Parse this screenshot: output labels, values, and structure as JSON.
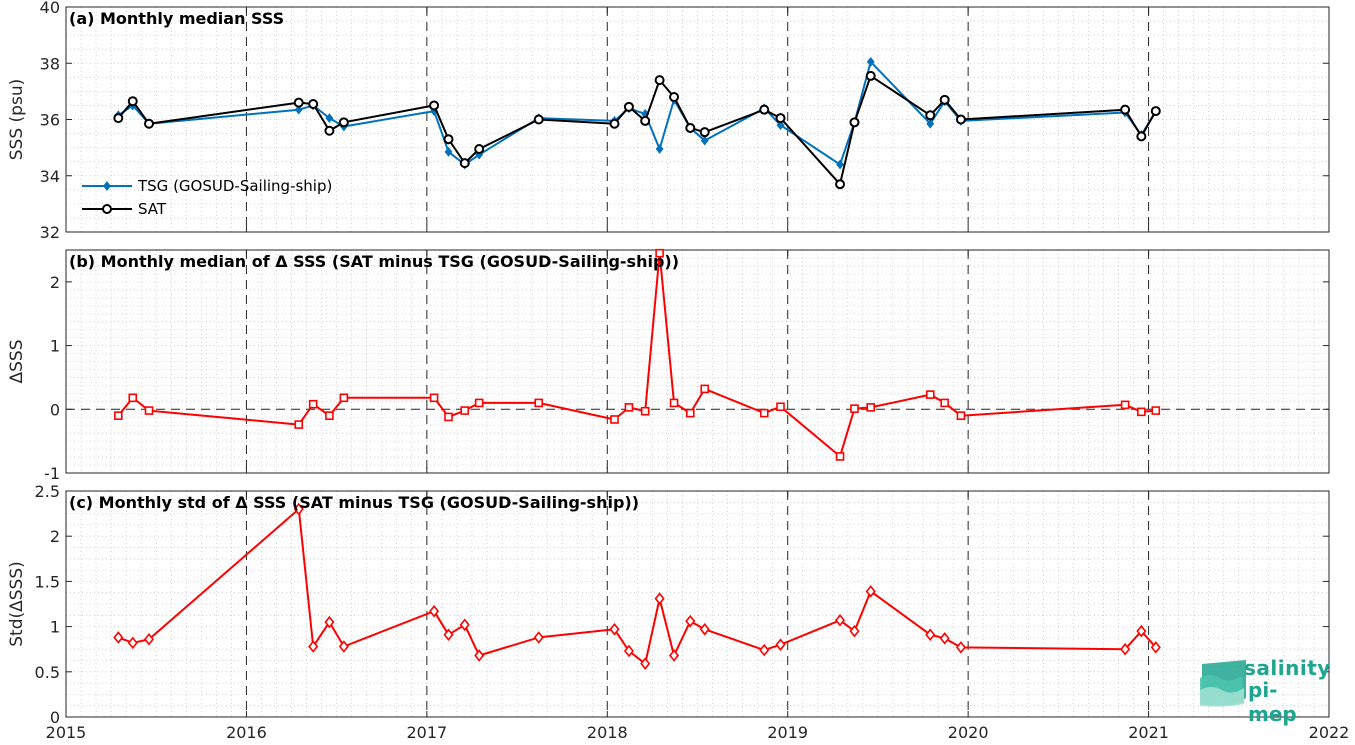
{
  "colors": {
    "tsg": "#0072bd",
    "sat": "#000000",
    "diff": "#ff0000",
    "logo": "#1fa58f"
  },
  "logo": {
    "line1": "salinity",
    "line2": "pi-mep"
  },
  "chart_data": [
    {
      "type": "line",
      "title": "(a) Monthly median SSS",
      "ylabel": "SSS (psu)",
      "xlim": [
        2015,
        2022
      ],
      "ylim": [
        32,
        40
      ],
      "yticks": [
        32,
        34,
        36,
        38,
        40
      ],
      "xticks": [
        2015,
        2016,
        2017,
        2018,
        2019,
        2020,
        2021,
        2022
      ],
      "grid": "dotted",
      "legend": "lower-left",
      "series": [
        {
          "name": "TSG (GOSUD-Sailing-ship)",
          "marker": "diamond",
          "x": [
            2015.29,
            2015.37,
            2015.46,
            2016.29,
            2016.37,
            2016.46,
            2016.54,
            2017.04,
            2017.12,
            2017.21,
            2017.29,
            2017.62,
            2018.04,
            2018.12,
            2018.21,
            2018.29,
            2018.37,
            2018.46,
            2018.54,
            2018.87,
            2018.96,
            2019.29,
            2019.37,
            2019.46,
            2019.79,
            2019.87,
            2019.96,
            2020.87,
            2020.96,
            2021.04
          ],
          "y": [
            36.15,
            36.5,
            35.85,
            36.35,
            36.5,
            36.05,
            35.75,
            36.3,
            34.85,
            34.4,
            34.75,
            36.05,
            35.95,
            36.4,
            36.2,
            34.95,
            36.7,
            35.7,
            35.25,
            36.4,
            35.8,
            34.4,
            35.9,
            38.05,
            35.85,
            36.65,
            35.95,
            36.25,
            35.45,
            36.3
          ]
        },
        {
          "name": "SAT",
          "marker": "circle",
          "x": [
            2015.29,
            2015.37,
            2015.46,
            2016.29,
            2016.37,
            2016.46,
            2016.54,
            2017.04,
            2017.12,
            2017.21,
            2017.29,
            2017.62,
            2018.04,
            2018.12,
            2018.21,
            2018.29,
            2018.37,
            2018.46,
            2018.54,
            2018.87,
            2018.96,
            2019.29,
            2019.37,
            2019.46,
            2019.79,
            2019.87,
            2019.96,
            2020.87,
            2020.96,
            2021.04
          ],
          "y": [
            36.05,
            36.65,
            35.85,
            36.6,
            36.55,
            35.6,
            35.9,
            36.5,
            35.3,
            34.45,
            34.95,
            36.0,
            35.85,
            36.45,
            35.95,
            37.4,
            36.8,
            35.7,
            35.55,
            36.35,
            36.05,
            33.7,
            35.9,
            37.55,
            36.15,
            36.7,
            36.0,
            36.35,
            35.4,
            36.3
          ]
        }
      ]
    },
    {
      "type": "line",
      "title": "(b) Monthly median of Δ SSS (SAT minus TSG (GOSUD-Sailing-ship))",
      "ylabel": "ΔSSS",
      "xlim": [
        2015,
        2022
      ],
      "ylim": [
        -1,
        2.5
      ],
      "yticks": [
        -1,
        0,
        1,
        2
      ],
      "xticks": [
        2015,
        2016,
        2017,
        2018,
        2019,
        2020,
        2021,
        2022
      ],
      "grid": "dotted",
      "zero_line": true,
      "series": [
        {
          "marker": "square",
          "x": [
            2015.29,
            2015.37,
            2015.46,
            2016.29,
            2016.37,
            2016.46,
            2016.54,
            2017.04,
            2017.12,
            2017.21,
            2017.29,
            2017.62,
            2018.04,
            2018.12,
            2018.21,
            2018.29,
            2018.37,
            2018.46,
            2018.54,
            2018.87,
            2018.96,
            2019.29,
            2019.37,
            2019.46,
            2019.79,
            2019.87,
            2019.96,
            2020.87,
            2020.96,
            2021.04
          ],
          "y": [
            -0.1,
            0.18,
            -0.02,
            -0.24,
            0.08,
            -0.1,
            0.18,
            0.18,
            -0.12,
            -0.02,
            0.1,
            0.1,
            -0.16,
            0.03,
            -0.03,
            2.45,
            0.1,
            -0.06,
            0.32,
            -0.06,
            0.04,
            -0.74,
            0.01,
            0.03,
            0.23,
            0.1,
            -0.1,
            0.07,
            -0.04,
            -0.02
          ]
        }
      ]
    },
    {
      "type": "line",
      "title": "(c) Monthly std of Δ SSS (SAT minus TSG (GOSUD-Sailing-ship))",
      "ylabel": "Std(ΔSSS)",
      "xlim": [
        2015,
        2022
      ],
      "ylim": [
        0,
        2.5
      ],
      "yticks": [
        0,
        0.5,
        1,
        1.5,
        2,
        2.5
      ],
      "xticks": [
        2015,
        2016,
        2017,
        2018,
        2019,
        2020,
        2021,
        2022
      ],
      "grid": "dotted",
      "series": [
        {
          "marker": "diamond",
          "x": [
            2015.29,
            2015.37,
            2015.46,
            2016.29,
            2016.37,
            2016.46,
            2016.54,
            2017.04,
            2017.12,
            2017.21,
            2017.29,
            2017.62,
            2018.04,
            2018.12,
            2018.21,
            2018.29,
            2018.37,
            2018.46,
            2018.54,
            2018.87,
            2018.96,
            2019.29,
            2019.37,
            2019.46,
            2019.79,
            2019.87,
            2019.96,
            2020.87,
            2020.96,
            2021.04
          ],
          "y": [
            0.88,
            0.82,
            0.86,
            2.3,
            0.78,
            1.05,
            0.78,
            1.17,
            0.91,
            1.02,
            0.68,
            0.88,
            0.97,
            0.73,
            0.59,
            1.31,
            0.68,
            1.06,
            0.97,
            0.74,
            0.8,
            1.07,
            0.95,
            1.39,
            0.91,
            0.87,
            0.77,
            0.75,
            0.95,
            0.77
          ]
        }
      ]
    }
  ]
}
